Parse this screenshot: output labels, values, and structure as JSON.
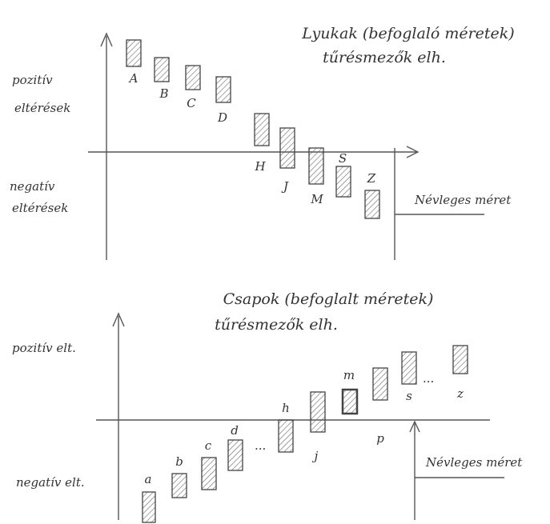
{
  "holes": {
    "title": "Lyukak (befoglaló méretek)",
    "subtitle": "tűrésmezők elh.",
    "positive_label": [
      "pozitív",
      "eltérések"
    ],
    "negative_label": [
      "negatív",
      "eltérések"
    ],
    "nominal_label": "Névleges méret",
    "fields": [
      "A",
      "B",
      "C",
      "D",
      "H",
      "J",
      "M",
      "S",
      "Z"
    ]
  },
  "shafts": {
    "title": "Csapok (befoglalt méretek)",
    "subtitle": "tűrésmezők elh.",
    "positive_label": "pozitív elt.",
    "negative_label": "negatív elt.",
    "nominal_label": "Névleges méret",
    "continuation": "...",
    "fields": [
      "a",
      "b",
      "c",
      "d",
      "h",
      "j",
      "m",
      "p",
      "s",
      "z"
    ]
  }
}
